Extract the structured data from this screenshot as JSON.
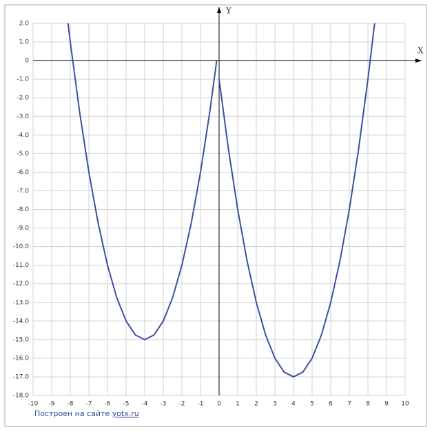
{
  "chart_data": {
    "type": "line",
    "x_label": "X",
    "y_label": "Y",
    "xlim": [
      -10,
      10
    ],
    "ylim": [
      -18,
      2
    ],
    "xticks": [
      -10,
      -9,
      -8,
      -7,
      -6,
      -5,
      -4,
      -3,
      -2,
      -1,
      0,
      1,
      2,
      3,
      4,
      5,
      6,
      7,
      8,
      9,
      10
    ],
    "yticks": [
      {
        "value": 2,
        "label": "2.0"
      },
      {
        "value": 1,
        "label": "1.0"
      },
      0,
      {
        "value": -1,
        "label": "-1.0"
      },
      {
        "value": -2,
        "label": "-2.0"
      },
      {
        "value": -3,
        "label": "-3.0"
      },
      {
        "value": -4,
        "label": "-4.0"
      },
      {
        "value": -5,
        "label": "-5.0"
      },
      {
        "value": -6,
        "label": "-6.0"
      },
      {
        "value": -7,
        "label": "-7.0"
      },
      {
        "value": -8,
        "label": "-8.0"
      },
      {
        "value": -9,
        "label": "-9.0"
      },
      {
        "value": -10,
        "label": "-10.0"
      },
      {
        "value": -11,
        "label": "-11.0"
      },
      {
        "value": -12,
        "label": "-12.0"
      },
      {
        "value": -13,
        "label": "-13.0"
      },
      {
        "value": -14,
        "label": "-14.0"
      },
      {
        "value": -15,
        "label": "-15.0"
      },
      {
        "value": -16,
        "label": "-16.0"
      },
      {
        "value": -17,
        "label": "-17.0"
      },
      {
        "value": -18,
        "label": "-18.0"
      }
    ],
    "grid": true,
    "series": [
      {
        "color": "#3b4fa3",
        "x": [
          -8.12,
          -8,
          -7.5,
          -7,
          -6.5,
          -6,
          -5.5,
          -5,
          -4.5,
          -4,
          -3.5,
          -3,
          -2.5,
          -2,
          -1.5,
          -1,
          -0.5,
          -0.13
        ],
        "values": [
          2,
          1,
          -2.75,
          -6,
          -8.75,
          -11,
          -12.75,
          -14,
          -14.75,
          -15,
          -14.75,
          -14,
          -12.75,
          -11,
          -8.75,
          -6,
          -2.75,
          0
        ]
      },
      {
        "color": "#3b4fa3",
        "x": [
          0,
          0.5,
          1,
          1.5,
          2,
          2.5,
          3,
          3.5,
          4,
          4.5,
          5,
          5.5,
          6,
          6.5,
          7,
          7.5,
          8,
          8.36
        ],
        "values": [
          -1,
          -4.75,
          -8,
          -10.75,
          -13,
          -14.75,
          -16,
          -16.75,
          -17,
          -16.75,
          -16,
          -14.75,
          -13,
          -10.75,
          -8,
          -4.75,
          -1,
          2
        ]
      }
    ]
  },
  "footer": {
    "text": "Построен на сайте ",
    "link": "yotx.ru"
  }
}
